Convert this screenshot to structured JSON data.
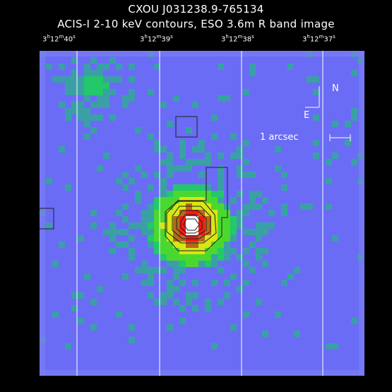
{
  "title_line1": "CXOU J031238.9-765134",
  "title_line2": "ACIS-I 2-10 keV contours, ESO 3.6m R band image",
  "ra_labels": [
    {
      "h": "3",
      "m": "12",
      "s": "40"
    },
    {
      "h": "3",
      "m": "12",
      "s": "39"
    },
    {
      "h": "3",
      "m": "12",
      "s": "38"
    },
    {
      "h": "3",
      "m": "12",
      "s": "37"
    }
  ],
  "compass": {
    "north": "N",
    "east": "E",
    "icon": "compass-arrows-icon"
  },
  "scale_bar": {
    "label": "1 arcsec",
    "icon": "scale-bar-icon"
  },
  "colors": {
    "background": "#6a6cf6",
    "low": "#3aa0a6",
    "mid": "#22c86a",
    "green": "#4bd82e",
    "yellow": "#d8e614",
    "orange": "#b46a1c",
    "red": "#f01c12",
    "peak": "#ffffff"
  }
}
